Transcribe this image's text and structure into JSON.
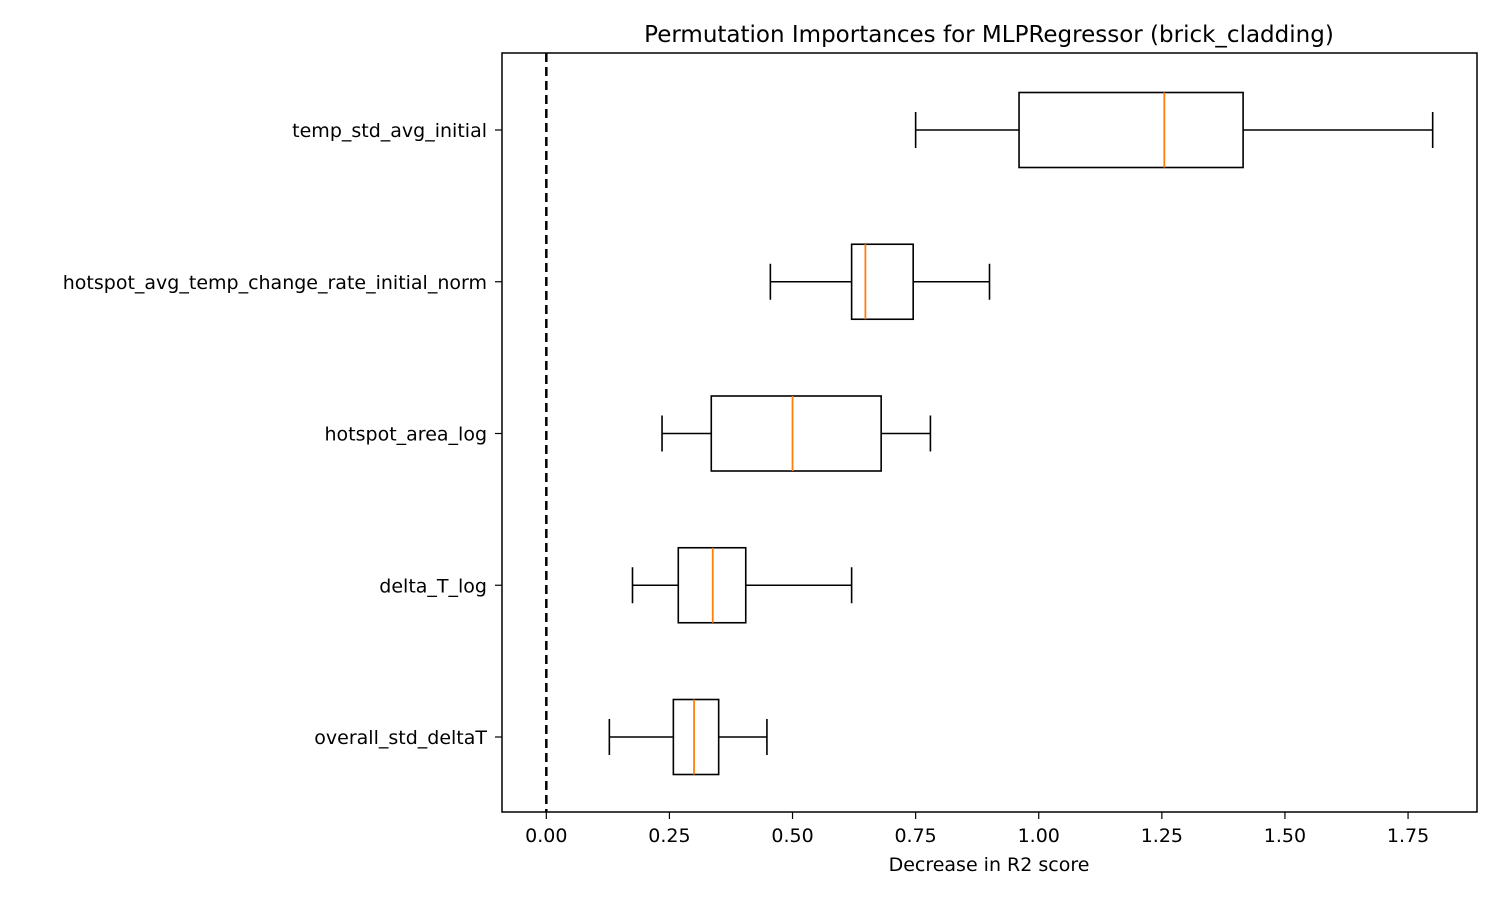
{
  "chart_data": {
    "type": "box",
    "orientation": "horizontal",
    "title": "Permutation Importances for MLPRegressor (brick_cladding)",
    "xlabel": "Decrease in R2 score",
    "ylabel": "",
    "xlim": [
      -0.09,
      1.89
    ],
    "xticks": [
      0.0,
      0.25,
      0.5,
      0.75,
      1.0,
      1.25,
      1.5,
      1.75
    ],
    "xtick_labels": [
      "0.00",
      "0.25",
      "0.50",
      "0.75",
      "1.00",
      "1.25",
      "1.50",
      "1.75"
    ],
    "grid": false,
    "reference_line": {
      "x": 0.0,
      "style": "dashed",
      "color": "#000000"
    },
    "colors": {
      "box": "#000000",
      "median": "#ff7f0e",
      "whisker": "#000000"
    },
    "categories": [
      "temp_std_avg_initial",
      "hotspot_avg_temp_change_rate_initial_norm",
      "hotspot_area_log",
      "delta_T_log",
      "overall_std_deltaT"
    ],
    "boxes": [
      {
        "label": "temp_std_avg_initial",
        "whislo": 0.75,
        "q1": 0.96,
        "med": 1.255,
        "q3": 1.415,
        "whishi": 1.8
      },
      {
        "label": "hotspot_avg_temp_change_rate_initial_norm",
        "whislo": 0.455,
        "q1": 0.62,
        "med": 0.648,
        "q3": 0.745,
        "whishi": 0.9
      },
      {
        "label": "hotspot_area_log",
        "whislo": 0.235,
        "q1": 0.335,
        "med": 0.5,
        "q3": 0.68,
        "whishi": 0.78
      },
      {
        "label": "delta_T_log",
        "whislo": 0.175,
        "q1": 0.268,
        "med": 0.338,
        "q3": 0.405,
        "whishi": 0.62
      },
      {
        "label": "overall_std_deltaT",
        "whislo": 0.128,
        "q1": 0.258,
        "med": 0.3,
        "q3": 0.35,
        "whishi": 0.448
      }
    ]
  }
}
